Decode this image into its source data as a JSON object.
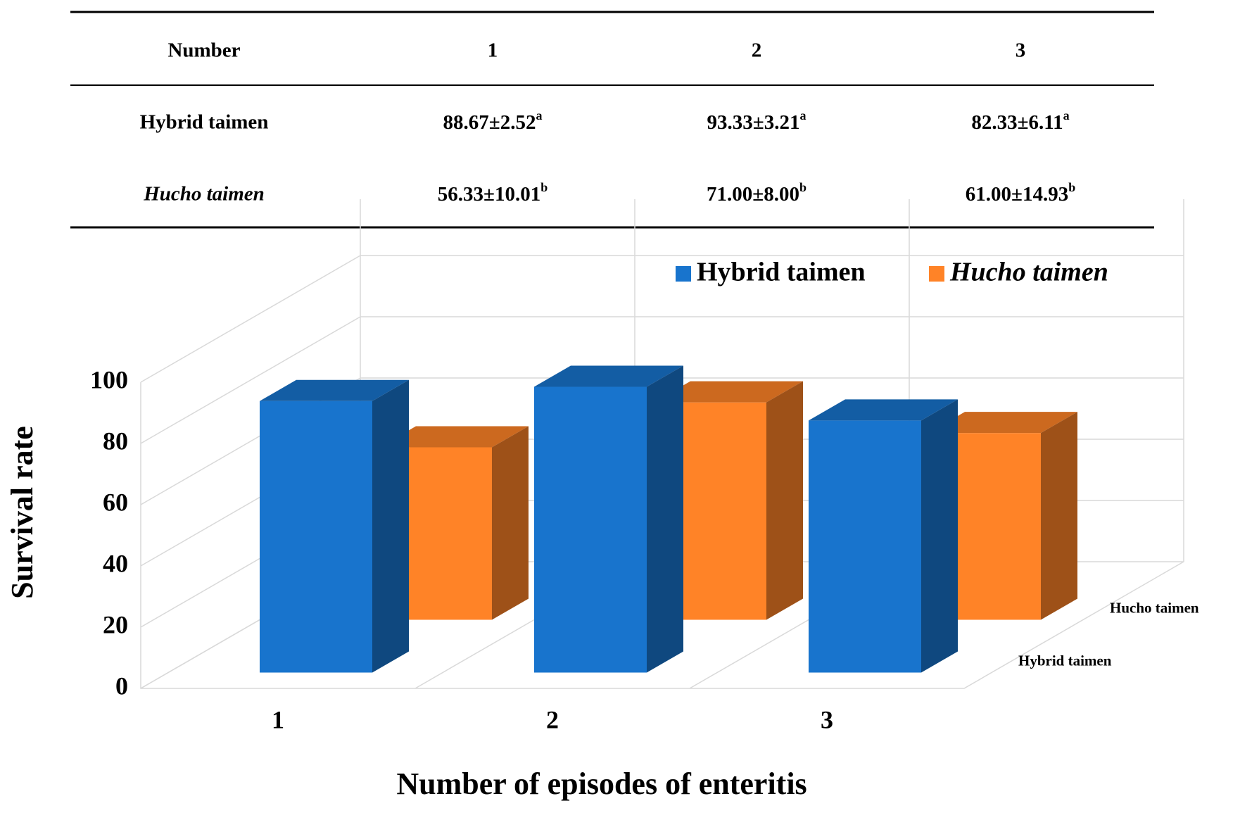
{
  "table": {
    "header": [
      "Number",
      "1",
      "2",
      "3"
    ],
    "rows": [
      {
        "label": "Hybrid taimen",
        "cells": [
          {
            "text": "88.67±2.52",
            "sup": "a"
          },
          {
            "text": "93.33±3.21",
            "sup": "a"
          },
          {
            "text": "82.33±6.11",
            "sup": "a"
          }
        ]
      },
      {
        "label": "Hucho taimen",
        "cells": [
          {
            "text": "56.33±10.01",
            "sup": "b"
          },
          {
            "text": "71.00±8.00",
            "sup": "b"
          },
          {
            "text": "61.00±14.93",
            "sup": "b"
          }
        ]
      }
    ]
  },
  "chart_data": {
    "type": "bar",
    "y_label": "Survival rate",
    "x_label": "Number of episodes of enteritis",
    "categories": [
      "1",
      "2",
      "3"
    ],
    "series": [
      {
        "name": "Hybrid taimen",
        "color": "#1874cd",
        "values": [
          88.67,
          93.33,
          82.33
        ]
      },
      {
        "name": "Hucho taimen",
        "color": "#ff8327",
        "values": [
          56.33,
          71.0,
          61.0
        ]
      }
    ],
    "ylim": [
      0,
      100
    ],
    "yticks": [
      0,
      20,
      40,
      60,
      80,
      100
    ],
    "grid": true,
    "legend": "top-right"
  }
}
